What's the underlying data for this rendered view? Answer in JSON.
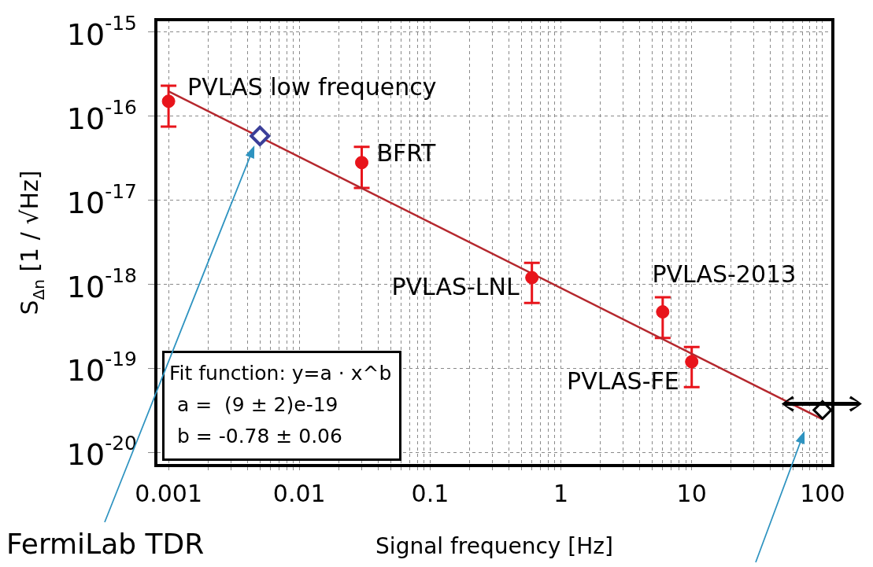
{
  "chart_data": {
    "type": "scatter",
    "xlabel": "Signal frequency [Hz]",
    "ylabel": "S$_{Δn}$ [1 / √Hz]",
    "log": "xy",
    "grid": true,
    "legend": false,
    "xlim": [
      0.0008,
      120
    ],
    "xticks": [
      0.001,
      {
        "value": 0.002,
        "label": null
      },
      {
        "value": 0.003,
        "label": null
      },
      {
        "value": 0.004,
        "label": null
      },
      {
        "value": 0.005,
        "label": null
      },
      {
        "value": 0.006,
        "label": null
      },
      {
        "value": 0.007,
        "label": null
      },
      {
        "value": 0.008,
        "label": null
      },
      {
        "value": 0.009,
        "label": null
      },
      0.01,
      {
        "value": 0.02,
        "label": null
      },
      {
        "value": 0.03,
        "label": null
      },
      {
        "value": 0.04,
        "label": null
      },
      {
        "value": 0.05,
        "label": null
      },
      {
        "value": 0.06,
        "label": null
      },
      {
        "value": 0.07,
        "label": null
      },
      {
        "value": 0.08,
        "label": null
      },
      {
        "value": 0.09,
        "label": null
      },
      0.1,
      {
        "value": 0.2,
        "label": null
      },
      {
        "value": 0.3,
        "label": null
      },
      {
        "value": 0.4,
        "label": null
      },
      {
        "value": 0.5,
        "label": null
      },
      {
        "value": 0.6,
        "label": null
      },
      {
        "value": 0.7,
        "label": null
      },
      {
        "value": 0.8,
        "label": null
      },
      {
        "value": 0.9,
        "label": null
      },
      1,
      {
        "value": 2,
        "label": null
      },
      {
        "value": 3,
        "label": null
      },
      {
        "value": 4,
        "label": null
      },
      {
        "value": 5,
        "label": null
      },
      {
        "value": 6,
        "label": null
      },
      {
        "value": 7,
        "label": null
      },
      {
        "value": 8,
        "label": null
      },
      {
        "value": 9,
        "label": null
      },
      10,
      {
        "value": 20,
        "label": null
      },
      {
        "value": 30,
        "label": null
      },
      {
        "value": 40,
        "label": null
      },
      {
        "value": 50,
        "label": null
      },
      {
        "value": 60,
        "label": null
      },
      {
        "value": 70,
        "label": null
      },
      {
        "value": 80,
        "label": null
      },
      {
        "value": 90,
        "label": null
      },
      100
    ],
    "ylim": [
      7e-21,
      1.4e-15
    ],
    "yticks": [
      {
        "value": 1e-20,
        "label": "10$^{-20}$"
      },
      {
        "value": 1e-19,
        "label": "10$^{-19}$"
      },
      {
        "value": 1e-18,
        "label": "10$^{-18}$"
      },
      {
        "value": 1e-17,
        "label": "10$^{-17}$"
      },
      {
        "value": 1e-16,
        "label": "10$^{-16}$"
      },
      {
        "value": 1e-15,
        "label": "10$^{-15}$"
      }
    ],
    "series": [
      {
        "color": "#e8141b",
        "marker": "circle",
        "x": [
          0.001,
          0.03,
          0.6,
          6,
          10
        ],
        "values": [
          1.5e-16,
          2.8e-17,
          1.2e-18,
          4.7e-19,
          1.2e-19
        ],
        "errors": [
          [
            7.5e-17,
            2.3e-16
          ],
          [
            1.4e-17,
            4.3e-17
          ],
          [
            6e-19,
            1.8e-18
          ],
          [
            2.3e-19,
            7e-19
          ],
          [
            6e-20,
            1.8e-19
          ]
        ]
      },
      {
        "color": "#3b3f99",
        "marker": "diamond",
        "x": [
          0.005
        ],
        "values": [
          5.8e-17
        ]
      },
      {
        "color": "#000000",
        "marker": "diamond",
        "x": [
          100
        ],
        "values": [
          3.2e-20
        ]
      },
      {
        "type": "line",
        "color": "#b5272d",
        "marker": "none",
        "x": [
          0.001,
          100
        ],
        "values": [
          1.97e-16,
          2.48e-20
        ]
      }
    ],
    "annotations": [
      {
        "text": "PVLAS low frequency",
        "x": 0.001,
        "y": 1.5e-16
      },
      {
        "text": "BFRT",
        "x": 0.03,
        "y": 2.8e-17
      },
      {
        "text": "PVLAS-LNL",
        "x": 0.6,
        "y": 1.2e-18
      },
      {
        "text": "PVLAS-2013",
        "x": 6,
        "y": 4.7e-19
      },
      {
        "text": "PVLAS-FE",
        "x": 10,
        "y": 1.2e-19
      },
      "FermiLab TDR",
      "Fit function: y=a · x^b",
      "a =  (9 ± 2)e-19",
      "b = -0.78 ± 0.06"
    ]
  }
}
